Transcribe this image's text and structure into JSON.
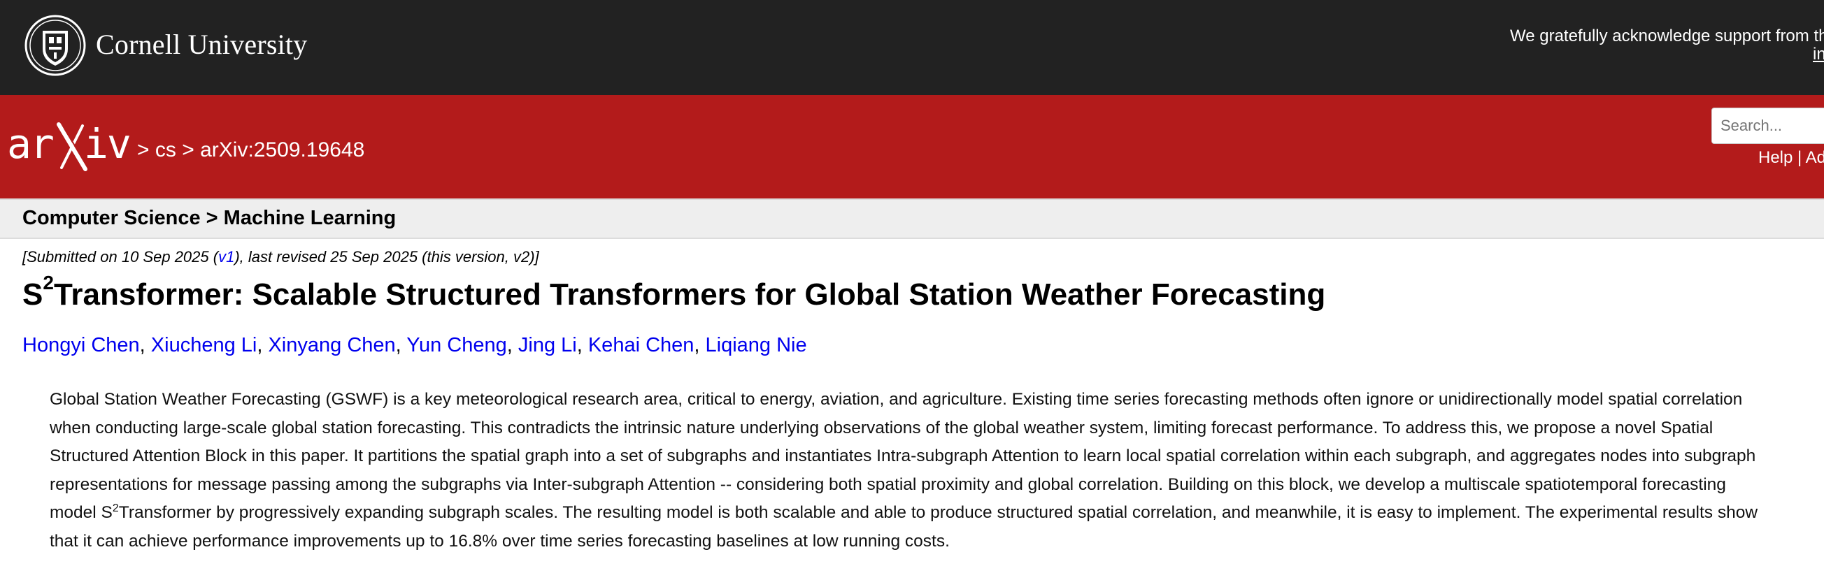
{
  "header": {
    "university_name": "Cornell University",
    "acknowledgement": "We gratefully acknowledge support from the",
    "acknowledgement_link": "in"
  },
  "nav": {
    "logo_text": "arXiv",
    "breadcrumb_sep1": ">",
    "breadcrumb_cs": "cs",
    "breadcrumb_sep2": ">",
    "breadcrumb_id": "arXiv:2509.19648",
    "search_placeholder": "Search...",
    "help_links": "Help | Ad"
  },
  "subject": {
    "text": "Computer Science > Machine Learning"
  },
  "paper": {
    "submitted_prefix": "[Submitted on 10 Sep 2025 (",
    "submitted_v1": "v1",
    "submitted_suffix": "), last revised 25 Sep 2025 (this version, v2)]",
    "title_S": "S",
    "title_sup": "2",
    "title_rest": "Transformer: Scalable Structured Transformers for Global Station Weather Forecasting",
    "authors": [
      "Hongyi Chen",
      "Xiucheng Li",
      "Xinyang Chen",
      "Yun Cheng",
      "Jing Li",
      "Kehai Chen",
      "Liqiang Nie"
    ],
    "author_sep": ", ",
    "abstract_part1": "Global Station Weather Forecasting (GSWF) is a key meteorological research area, critical to energy, aviation, and agriculture. Existing time series forecasting methods often ignore or unidirectionally model spatial correlation when conducting large-scale global station forecasting. This contradicts the intrinsic nature underlying observations of the global weather system, limiting forecast performance. To address this, we propose a novel Spatial Structured Attention Block in this paper. It partitions the spatial graph into a set of subgraphs and instantiates Intra-subgraph Attention to learn local spatial correlation within each subgraph, and aggregates nodes into subgraph representations for message passing among the subgraphs via Inter-subgraph Attention -- considering both spatial proximity and global correlation. Building on this block, we develop a multiscale spatiotemporal forecasting model S",
    "abstract_sup": "2",
    "abstract_part2": "Transformer by progressively expanding subgraph scales. The resulting model is both scalable and able to produce structured spatial correlation, and meanwhile, it is easy to implement. The experimental results show that it can achieve performance improvements up to 16.8% over time series forecasting baselines at low running costs."
  },
  "colors": {
    "top_band": "#222222",
    "red_band": "#b31b1b",
    "link": "#0000ee"
  }
}
